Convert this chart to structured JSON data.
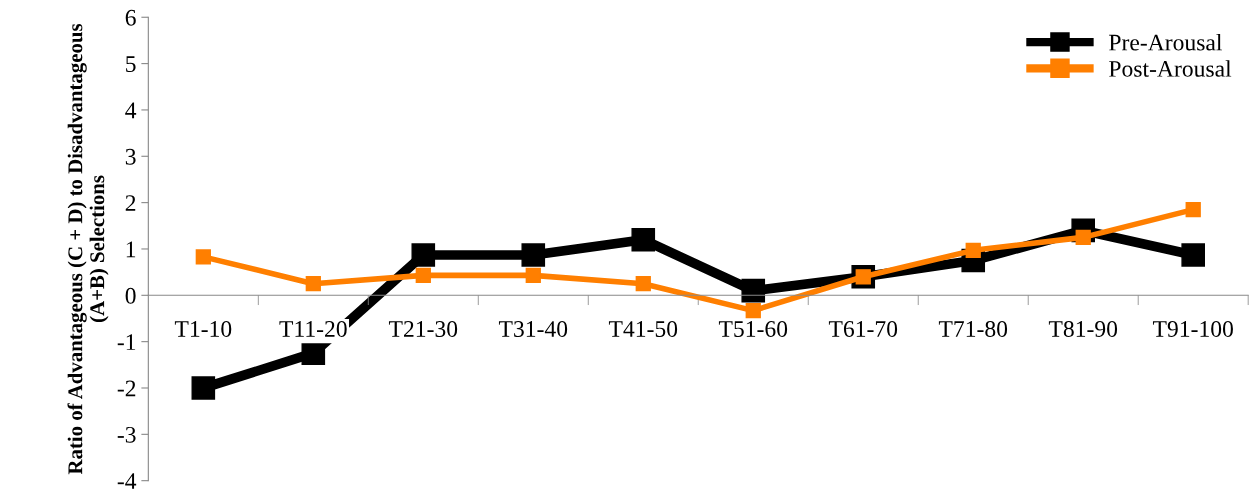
{
  "chart_data": {
    "type": "line",
    "ylabel": "Ratio of Advantageous (C + D) to Disadvantageous (A+B) Selections",
    "categories": [
      "T1-10",
      "T11-20",
      "T21-30",
      "T31-40",
      "T41-50",
      "T51-60",
      "T61-70",
      "T71-80",
      "T81-90",
      "T91-100"
    ],
    "series": [
      {
        "name": "Pre-Arousal",
        "color": "#000000",
        "values": [
          -2.0,
          -1.25,
          0.87,
          0.87,
          1.2,
          0.1,
          0.4,
          0.75,
          1.4,
          0.87
        ]
      },
      {
        "name": "Post-Arousal",
        "color": "#ff7f00",
        "values": [
          0.83,
          0.25,
          0.43,
          0.43,
          0.25,
          -0.33,
          0.4,
          0.97,
          1.25,
          1.85
        ]
      }
    ],
    "ylim": [
      -4,
      6
    ],
    "yticks": [
      -4,
      -3,
      -2,
      -1,
      0,
      1,
      2,
      3,
      4,
      5,
      6
    ],
    "marker": "square",
    "line_style": "solid",
    "grid": false,
    "legend": "top right"
  }
}
